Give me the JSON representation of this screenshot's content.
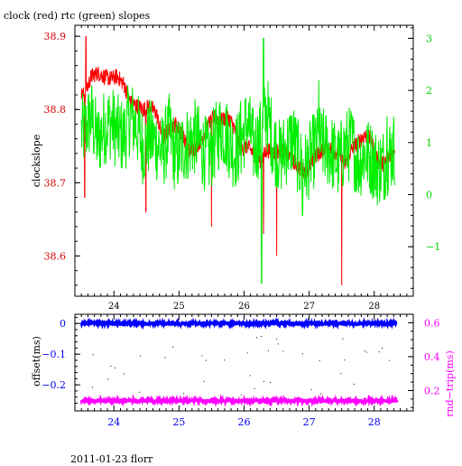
{
  "title": "clock (red) rtc (green) slopes",
  "footer": "2011-01-23 florr",
  "colors": {
    "clock": "#ff0000",
    "rtc": "#00ee00",
    "offset": "#0000ff",
    "roundtrip": "#ff00ff",
    "red_axis": "#d40000",
    "green_axis": "#00d000",
    "blue_axis": "#0000ee"
  },
  "chart_data": [
    {
      "type": "line",
      "title": "clock (red) rtc (green) slopes",
      "xlim": [
        23.4,
        28.6
      ],
      "xticks": [
        24,
        25,
        26,
        27,
        28
      ],
      "x_tick_labels": [
        "24",
        "25",
        "26",
        "27",
        "28"
      ],
      "ylabel_left": "clockslope",
      "ylim_left": [
        38.545,
        38.915
      ],
      "yticks_left": [
        38.6,
        38.7,
        38.8,
        38.9
      ],
      "y_tick_labels_left": [
        "38.6",
        "38.7",
        "38.8",
        "38.9"
      ],
      "ylim_right": [
        -1.95,
        3.25
      ],
      "yticks_right": [
        -1,
        0,
        1,
        2,
        3
      ],
      "y_tick_labels_right": [
        "−1",
        "0",
        "1",
        "2",
        "3"
      ],
      "series": [
        {
          "name": "clock",
          "axis": "left",
          "x": [
            23.55,
            23.65,
            23.75,
            23.85,
            23.95,
            24.05,
            24.15,
            24.25,
            24.35,
            24.45,
            24.55,
            24.65,
            24.75,
            24.85,
            24.95,
            25.05,
            25.15,
            25.25,
            25.35,
            25.45,
            25.55,
            25.65,
            25.75,
            25.85,
            25.95,
            26.05,
            26.15,
            26.25,
            26.35,
            26.45,
            26.55,
            26.65,
            26.75,
            26.85,
            26.95,
            27.05,
            27.15,
            27.25,
            27.35,
            27.45,
            27.55,
            27.65,
            27.75,
            27.85,
            27.95,
            28.05,
            28.15,
            28.25,
            28.32
          ],
          "y": [
            38.82,
            38.845,
            38.85,
            38.845,
            38.842,
            38.845,
            38.835,
            38.81,
            38.805,
            38.8,
            38.805,
            38.795,
            38.76,
            38.775,
            38.78,
            38.765,
            38.745,
            38.748,
            38.76,
            38.78,
            38.79,
            38.785,
            38.79,
            38.775,
            38.745,
            38.75,
            38.74,
            38.73,
            38.745,
            38.74,
            38.745,
            38.74,
            38.73,
            38.72,
            38.715,
            38.73,
            38.74,
            38.75,
            38.745,
            38.74,
            38.725,
            38.745,
            38.755,
            38.765,
            38.76,
            38.73,
            38.725,
            38.74,
            38.75
          ]
        },
        {
          "name": "rtc",
          "axis": "right",
          "x": [
            23.55,
            23.65,
            23.75,
            23.85,
            23.95,
            24.05,
            24.15,
            24.25,
            24.35,
            24.45,
            24.55,
            24.65,
            24.75,
            24.85,
            24.95,
            25.05,
            25.15,
            25.25,
            25.35,
            25.45,
            25.55,
            25.65,
            25.75,
            25.85,
            25.95,
            26.05,
            26.15,
            26.25,
            26.35,
            26.45,
            26.55,
            26.65,
            26.75,
            26.85,
            26.95,
            27.05,
            27.15,
            27.25,
            27.35,
            27.45,
            27.55,
            27.65,
            27.75,
            27.85,
            27.95,
            28.05,
            28.15,
            28.25,
            28.32
          ],
          "y": [
            1.2,
            1.5,
            1.0,
            1.3,
            1.4,
            1.2,
            1.1,
            1.5,
            1.3,
            0.9,
            1.1,
            1.0,
            0.8,
            1.2,
            0.7,
            0.9,
            1.0,
            1.1,
            0.9,
            0.7,
            1.0,
            1.3,
            1.1,
            0.8,
            1.0,
            1.4,
            0.9,
            1.1,
            1.6,
            1.0,
            0.7,
            0.9,
            1.1,
            0.6,
            0.5,
            0.8,
            1.0,
            0.9,
            0.8,
            0.6,
            0.9,
            1.0,
            0.6,
            0.8,
            0.7,
            0.5,
            0.6,
            0.8,
            0.9
          ]
        }
      ]
    },
    {
      "type": "scatter",
      "xlim": [
        23.4,
        28.6
      ],
      "xticks": [
        24,
        25,
        26,
        27,
        28
      ],
      "x_tick_labels": [
        "24",
        "25",
        "26",
        "27",
        "28"
      ],
      "ylabel_left": "offset(ms)",
      "ylim_left": [
        -0.285,
        0.03
      ],
      "yticks_left": [
        0,
        -0.1,
        -0.2
      ],
      "y_tick_labels_left": [
        "0",
        "−0.1",
        "−0.2"
      ],
      "ylabel_right": "rnd−trip(ms)",
      "ylim_right": [
        0.08,
        0.65
      ],
      "yticks_right": [
        0.2,
        0.4,
        0.6
      ],
      "y_tick_labels_right": [
        "0.2",
        "0.4",
        "0.6"
      ],
      "series": [
        {
          "name": "offset",
          "axis": "left",
          "xrange": [
            23.5,
            28.35
          ],
          "level": 0.0,
          "spread": 0.003
        },
        {
          "name": "rnd-trip",
          "axis": "right",
          "xrange": [
            23.5,
            28.35
          ],
          "level": 0.14,
          "spread": 0.01
        }
      ]
    }
  ]
}
